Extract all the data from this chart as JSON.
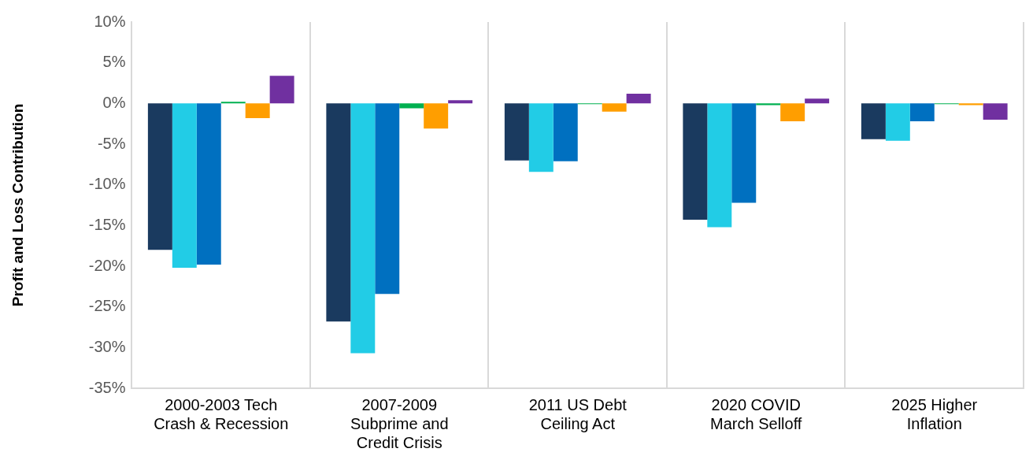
{
  "chart_data": {
    "type": "bar",
    "ylabel": "Profit and Loss Contribution",
    "categories": [
      "2000-2003 Tech\nCrash & Recession",
      "2007-2009\nSubprime and\nCredit Crisis",
      "2011 US Debt\nCeiling Act",
      "2020 COVID\nMarch Selloff",
      "2025 Higher\nInflation"
    ],
    "series": [
      {
        "color": "#1a3a5f",
        "values": [
          -18.0,
          -26.8,
          -7.0,
          -14.3,
          -4.4
        ]
      },
      {
        "color": "#22cce6",
        "values": [
          -20.2,
          -30.7,
          -8.4,
          -15.2,
          -4.6
        ]
      },
      {
        "color": "#0070c0",
        "values": [
          -19.8,
          -23.4,
          -7.1,
          -12.2,
          -2.2
        ]
      },
      {
        "color": "#00b050",
        "values": [
          0.2,
          -0.6,
          -0.1,
          -0.2,
          -0.1
        ]
      },
      {
        "color": "#ff9e00",
        "values": [
          -1.8,
          -3.1,
          -1.0,
          -2.2,
          -0.2
        ]
      },
      {
        "color": "#7030a0",
        "values": [
          3.4,
          0.4,
          1.2,
          0.6,
          -2.0
        ]
      }
    ],
    "ylim": [
      -35,
      10
    ],
    "yticks": [
      {
        "value": -35,
        "label": "-35%"
      },
      {
        "value": -30,
        "label": "-30%"
      },
      {
        "value": -25,
        "label": "-25%"
      },
      {
        "value": -20,
        "label": "-20%"
      },
      {
        "value": -15,
        "label": "-15%"
      },
      {
        "value": -10,
        "label": "-10%"
      },
      {
        "value": -5,
        "label": "-5%"
      },
      {
        "value": 0,
        "label": "0%"
      },
      {
        "value": 5,
        "label": "5%"
      },
      {
        "value": 10,
        "label": "10%"
      }
    ],
    "grid": "x",
    "legend": false
  }
}
